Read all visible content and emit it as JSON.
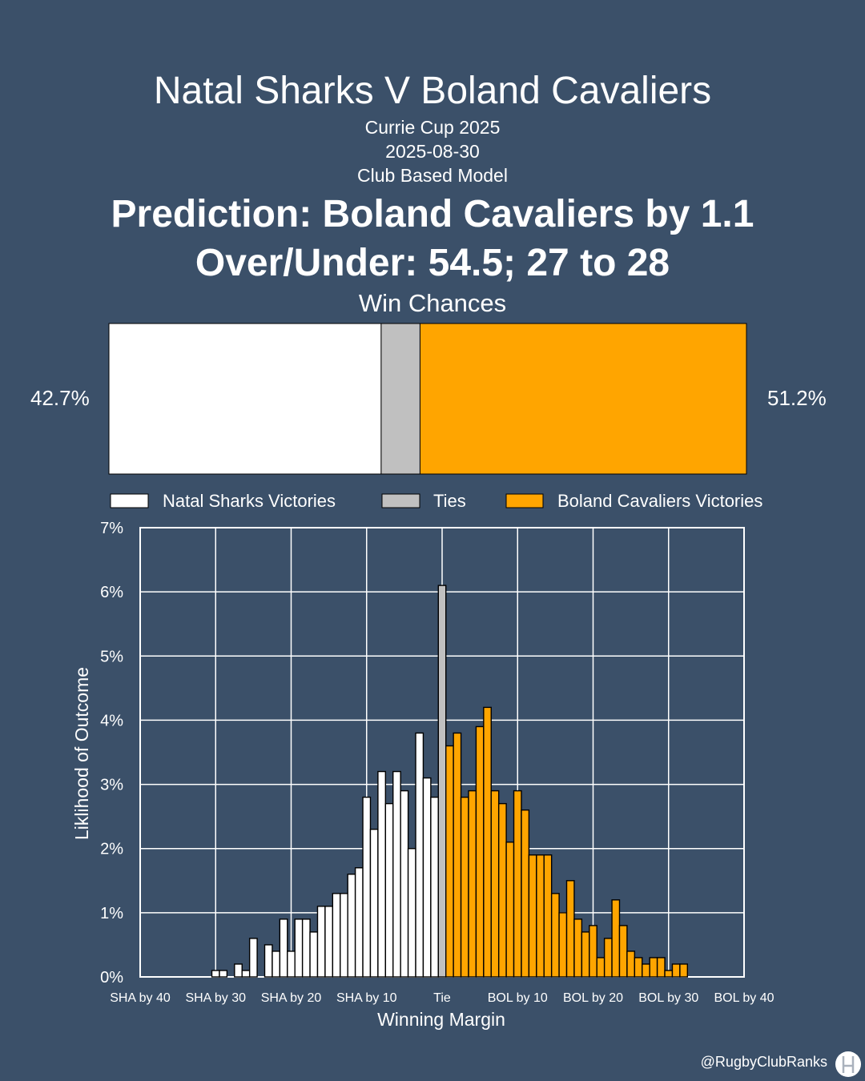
{
  "title": "Natal Sharks V Boland Cavaliers",
  "competition": "Currie Cup 2025",
  "date": "2025-08-30",
  "model": "Club Based Model",
  "prediction": "Prediction: Boland Cavaliers by 1.1",
  "over_under": "Over/Under: 54.5; 27 to 28",
  "win_chances": {
    "title": "Win Chances",
    "home_pct_label": "42.7%",
    "away_pct_label": "51.2%",
    "home_value": 42.7,
    "tie_value": 6.1,
    "away_value": 51.2
  },
  "legend": {
    "home": "Natal Sharks Victories",
    "tie": "Ties",
    "away": "Boland Cavaliers Victories"
  },
  "colors": {
    "background": "#3b5069",
    "home": "#ffffff",
    "tie": "#c0c0c0",
    "away": "#ffa500",
    "outline": "#000000"
  },
  "chart_data": {
    "type": "bar",
    "xlabel": "Winning Margin",
    "ylabel": "Liklihood of Outcome",
    "xlim": [
      -40,
      40
    ],
    "ylim": [
      0,
      7
    ],
    "grid": true,
    "x_ticks": [
      -40,
      -30,
      -20,
      -10,
      0,
      10,
      20,
      30,
      40
    ],
    "x_tick_labels": [
      "SHA by 40",
      "SHA by 30",
      "SHA by 20",
      "SHA by 10",
      "Tie",
      "BOL by 10",
      "BOL by 20",
      "BOL by 30",
      "BOL by 40"
    ],
    "y_ticks": [
      0,
      1,
      2,
      3,
      4,
      5,
      6,
      7
    ],
    "y_tick_labels": [
      "0%",
      "1%",
      "2%",
      "3%",
      "4%",
      "5%",
      "6%",
      "7%"
    ],
    "series": [
      {
        "name": "Natal Sharks Victories",
        "x": [
          -30,
          -29,
          -27,
          -26,
          -25,
          -23,
          -22,
          -21,
          -20,
          -19,
          -18,
          -17,
          -16,
          -15,
          -14,
          -13,
          -12,
          -11,
          -10,
          -9,
          -8,
          -7,
          -6,
          -5,
          -4,
          -3,
          -2,
          -1
        ],
        "values": [
          0.1,
          0.1,
          0.2,
          0.1,
          0.6,
          0.5,
          0.4,
          0.9,
          0.4,
          0.9,
          0.9,
          0.7,
          1.1,
          1.1,
          1.3,
          1.3,
          1.6,
          1.7,
          2.8,
          2.3,
          3.2,
          2.7,
          3.2,
          2.9,
          2.0,
          3.8,
          3.1,
          2.8
        ]
      },
      {
        "name": "Ties",
        "x": [
          0
        ],
        "values": [
          6.1
        ]
      },
      {
        "name": "Boland Cavaliers Victories",
        "x": [
          1,
          2,
          3,
          4,
          5,
          6,
          7,
          8,
          9,
          10,
          11,
          12,
          13,
          14,
          15,
          16,
          17,
          18,
          19,
          20,
          21,
          22,
          23,
          24,
          25,
          26,
          27,
          28,
          29,
          30,
          31,
          32
        ],
        "values": [
          3.6,
          3.8,
          2.8,
          2.9,
          3.9,
          4.2,
          2.9,
          2.7,
          2.1,
          2.9,
          2.6,
          1.9,
          1.9,
          1.9,
          1.3,
          1.0,
          1.5,
          0.9,
          0.7,
          0.8,
          0.3,
          0.6,
          1.2,
          0.8,
          0.4,
          0.3,
          0.2,
          0.3,
          0.3,
          0.1,
          0.2,
          0.2
        ]
      }
    ]
  },
  "handle": "@RugbyClubRanks"
}
